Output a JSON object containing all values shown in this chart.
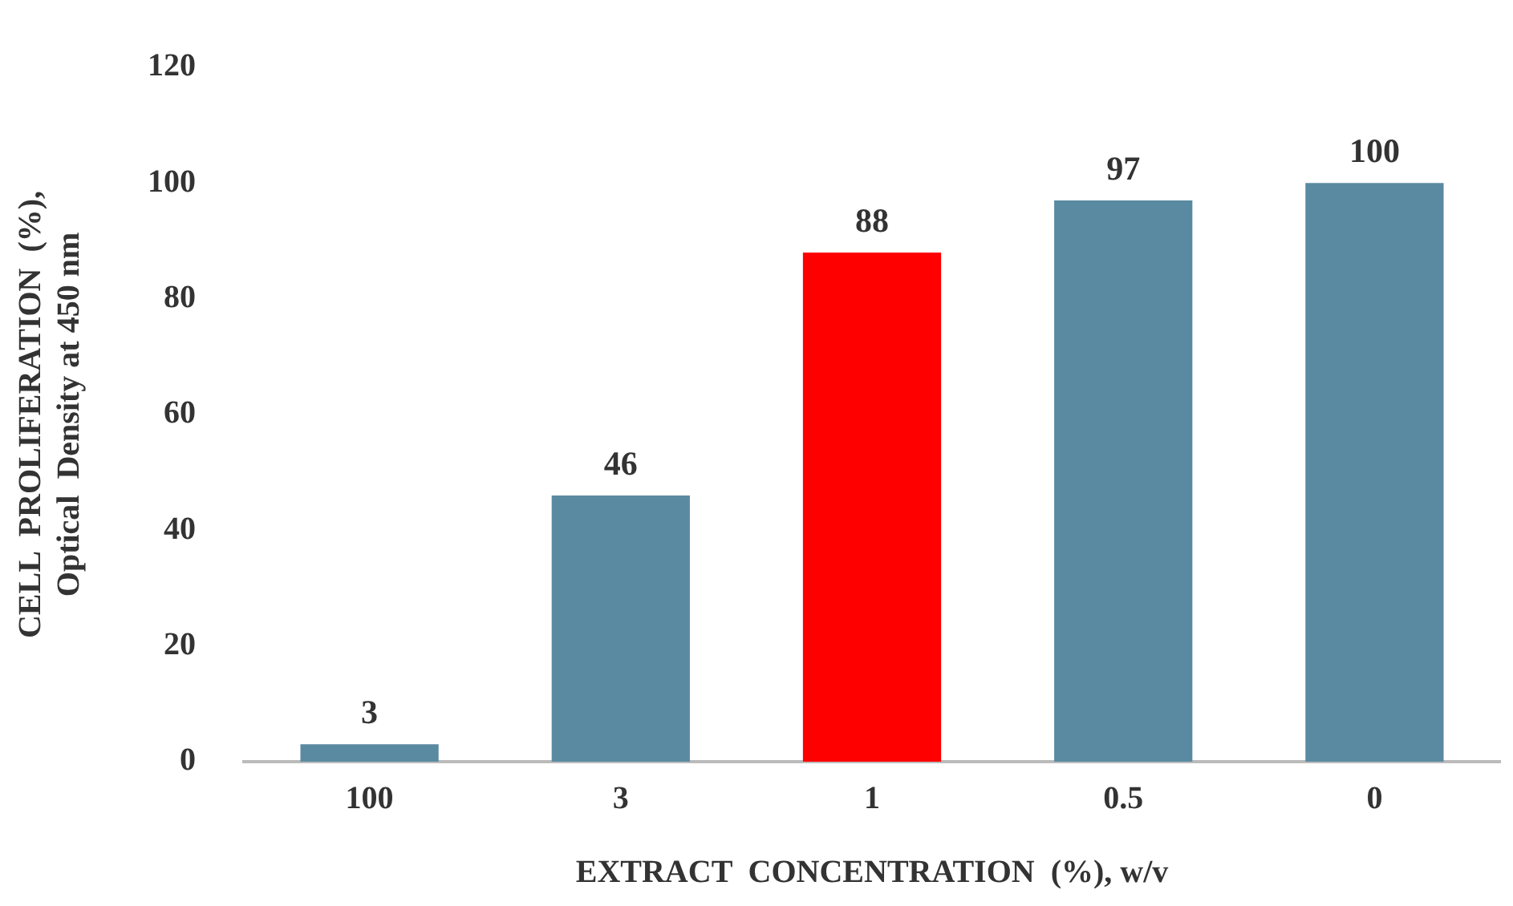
{
  "chart_data": {
    "type": "bar",
    "categories": [
      "100",
      "3",
      "1",
      "0.5",
      "0"
    ],
    "values": [
      3,
      46,
      88,
      97,
      100
    ],
    "colors": [
      "#5a8aa1",
      "#5a8aa1",
      "#ff0000",
      "#5a8aa1",
      "#5a8aa1"
    ],
    "xlabel": "EXTRACT  CONCENTRATION  (%), w/v",
    "ylabel": "CELL  PROLIFERATION  (%),\nOptical  Density at 450 nm",
    "ylim": [
      0,
      120
    ],
    "yticks": [
      0,
      20,
      40,
      60,
      80,
      100,
      120
    ],
    "grid": false,
    "legend": false,
    "data_labels": true
  }
}
